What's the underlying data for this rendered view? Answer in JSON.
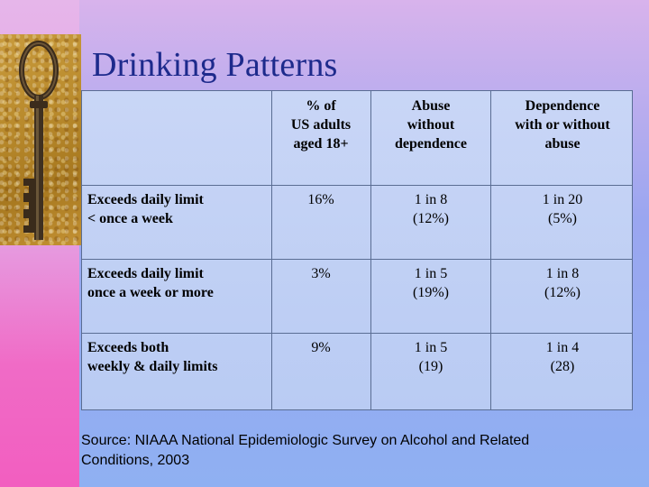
{
  "slide": {
    "title": "Drinking Patterns",
    "image_description": "old iron key on burlap"
  },
  "table": {
    "headers": [
      "",
      "% of US adults aged 18+",
      "Abuse without dependence",
      "Dependence with or without abuse"
    ],
    "header_lines": {
      "pct": [
        "% of",
        "US adults",
        "aged 18+"
      ],
      "abuse": [
        "Abuse",
        "without",
        "dependence"
      ],
      "dependence": [
        "Dependence",
        "with or without",
        "abuse"
      ]
    },
    "rows": [
      {
        "label_lines": [
          "Exceeds daily limit",
          "< once a week"
        ],
        "pct": "16%",
        "abuse": [
          "1 in 8",
          "(12%)"
        ],
        "dependence": [
          "1 in 20",
          "(5%)"
        ]
      },
      {
        "label_lines": [
          "Exceeds daily limit",
          "once a week or more"
        ],
        "pct": "3%",
        "abuse": [
          "1 in 5",
          "(19%)"
        ],
        "dependence": [
          "1 in 8",
          "(12%)"
        ]
      },
      {
        "label_lines": [
          "Exceeds both",
          "weekly & daily limits"
        ],
        "pct": "9%",
        "abuse": [
          "1 in 5",
          "(19)"
        ],
        "dependence": [
          "1 in 4",
          "(28)"
        ]
      }
    ]
  },
  "source_lines": [
    "Source: NIAAA National Epidemiologic Survey on Alcohol and Related",
    "Conditions, 2003"
  ],
  "colors": {
    "title": "#1d2a8c",
    "table_bg": "#c2d1f5",
    "border": "#5a6d93",
    "left_bar": "#f06bc6"
  }
}
